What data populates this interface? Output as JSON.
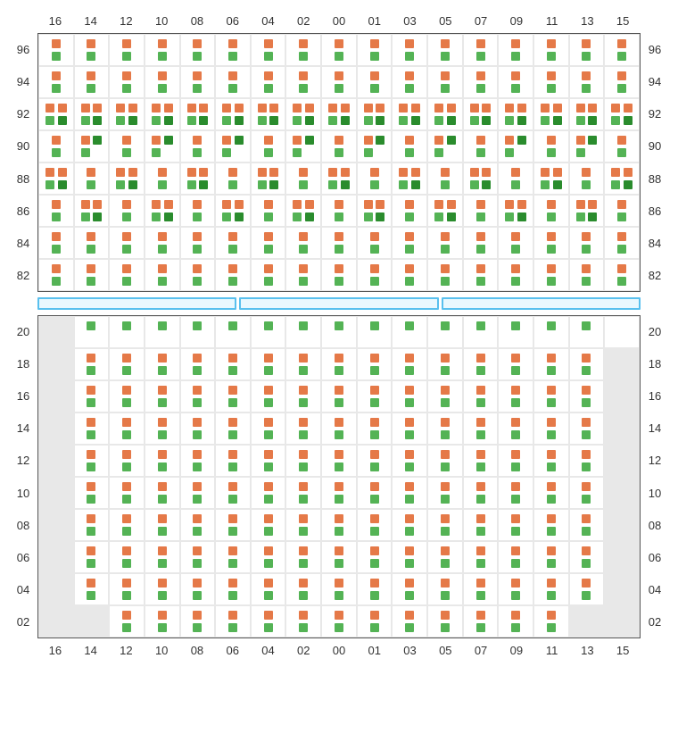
{
  "columns": [
    "16",
    "14",
    "12",
    "10",
    "08",
    "06",
    "04",
    "02",
    "00",
    "01",
    "03",
    "05",
    "07",
    "09",
    "11",
    "13",
    "15"
  ],
  "colors": {
    "orange": "#e57948",
    "green": "#54b355",
    "dark_green": "#2a8c2d",
    "sep_border": "#59c0ee",
    "sep_fill": "#eaf8fe",
    "grid_bg": "#e8e8e8",
    "cell_bg": "#ffffff",
    "border": "#555555"
  },
  "separator_segments": 3,
  "top": {
    "rows": [
      "96",
      "94",
      "92",
      "90",
      "88",
      "86",
      "84",
      "82"
    ],
    "cells": {
      "96": {
        "all": "og"
      },
      "94": {
        "all": "og"
      },
      "92": {
        "all": "og+odg"
      },
      "90": {
        "cols": {
          "16": "og",
          "14": "og+dg",
          "12": "og",
          "10": "og+dg",
          "08": "og",
          "06": "og+dg",
          "04": "og",
          "02": "og+dg",
          "00": "og",
          "01": "og+dg",
          "03": "og",
          "05": "og+dg",
          "07": "og",
          "09": "og+dg",
          "11": "og",
          "13": "og+dg",
          "15": "og"
        }
      },
      "88": {
        "cols": {
          "16": "og+odg",
          "14": "og",
          "12": "og+odg",
          "10": "og",
          "08": "og+odg",
          "06": "og",
          "04": "og+odg",
          "02": "og",
          "00": "og+odg",
          "01": "og",
          "03": "og+odg",
          "05": "og",
          "07": "og+odg",
          "09": "og",
          "11": "og+odg",
          "13": "og",
          "15": "og+odg"
        }
      },
      "86": {
        "cols": {
          "16": "og",
          "14": "og+odg",
          "12": "og",
          "10": "og+odg",
          "08": "og",
          "06": "og+odg",
          "04": "og",
          "02": "og+odg",
          "00": "og",
          "01": "og+odg",
          "03": "og",
          "05": "og+odg",
          "07": "og",
          "09": "og+odg",
          "11": "og",
          "13": "og+odg",
          "15": "og"
        }
      },
      "84": {
        "all": "og"
      },
      "82": {
        "all": "og"
      }
    }
  },
  "bottom": {
    "rows": [
      "20",
      "18",
      "16",
      "14",
      "12",
      "10",
      "08",
      "06",
      "04",
      "02"
    ],
    "cells": {
      "20": {
        "inactive": [
          "16"
        ],
        "cols_default": "g",
        "cols": {
          "15": "",
          "16": ""
        }
      },
      "18": {
        "inactive": [
          "16",
          "15"
        ],
        "cols_default": "og"
      },
      "16": {
        "inactive": [
          "16",
          "15"
        ],
        "cols_default": "og"
      },
      "14": {
        "inactive": [
          "16",
          "15"
        ],
        "cols_default": "og"
      },
      "12": {
        "inactive": [
          "16",
          "15"
        ],
        "cols_default": "og"
      },
      "10": {
        "inactive": [
          "16",
          "15"
        ],
        "cols_default": "og"
      },
      "08": {
        "inactive": [
          "16",
          "15"
        ],
        "cols_default": "og"
      },
      "06": {
        "inactive": [
          "16",
          "15"
        ],
        "cols_default": "og"
      },
      "04": {
        "inactive": [
          "16",
          "15"
        ],
        "cols_default": "og"
      },
      "02": {
        "inactive": [
          "16",
          "14",
          "13",
          "15"
        ],
        "cols_default": "og"
      }
    }
  }
}
